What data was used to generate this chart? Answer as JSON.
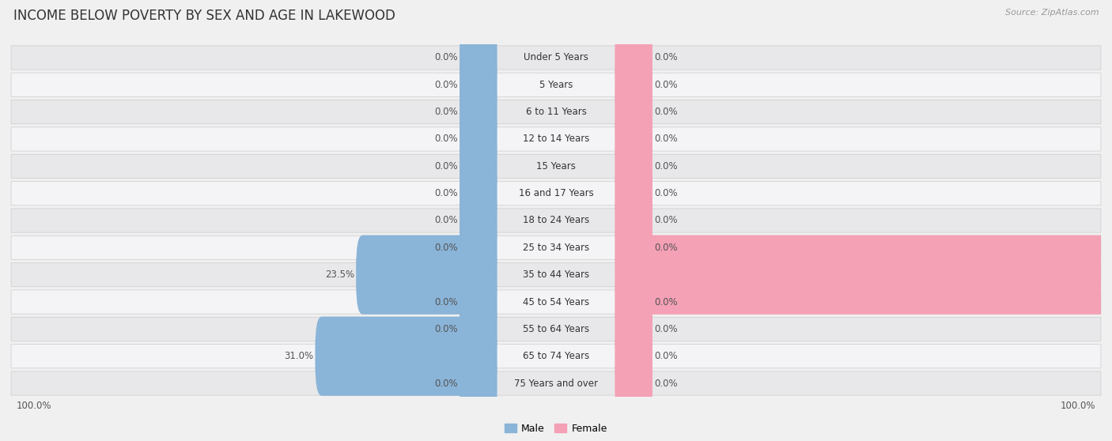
{
  "title": "INCOME BELOW POVERTY BY SEX AND AGE IN LAKEWOOD",
  "source": "Source: ZipAtlas.com",
  "categories": [
    "Under 5 Years",
    "5 Years",
    "6 to 11 Years",
    "12 to 14 Years",
    "15 Years",
    "16 and 17 Years",
    "18 to 24 Years",
    "25 to 34 Years",
    "35 to 44 Years",
    "45 to 54 Years",
    "55 to 64 Years",
    "65 to 74 Years",
    "75 Years and over"
  ],
  "male_values": [
    0.0,
    0.0,
    0.0,
    0.0,
    0.0,
    0.0,
    0.0,
    0.0,
    23.5,
    0.0,
    0.0,
    31.0,
    0.0
  ],
  "female_values": [
    0.0,
    0.0,
    0.0,
    0.0,
    0.0,
    0.0,
    0.0,
    0.0,
    100.0,
    0.0,
    0.0,
    0.0,
    0.0
  ],
  "male_color": "#8ab4d8",
  "female_color": "#f4a0b5",
  "male_label": "Male",
  "female_label": "Female",
  "max_value": 100.0,
  "stub": 4.5,
  "bg_color": "#f0f0f0",
  "row_even_color": "#e8e8ea",
  "row_odd_color": "#f4f4f6",
  "title_fontsize": 12,
  "label_fontsize": 8.5,
  "source_fontsize": 8
}
